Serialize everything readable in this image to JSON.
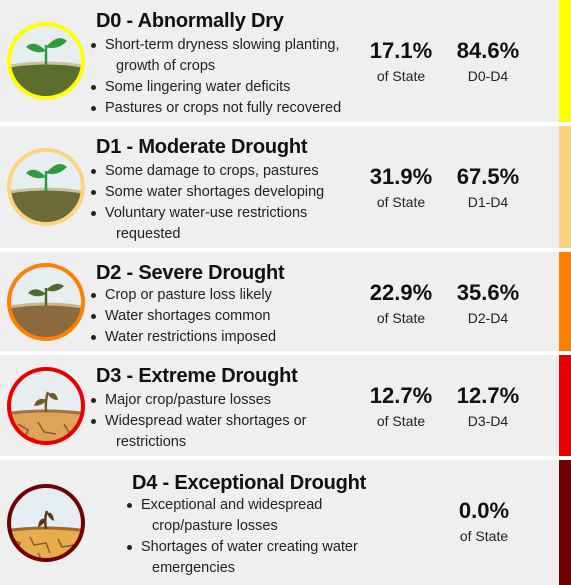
{
  "levels": [
    {
      "id": "d0",
      "title": "D0 - Abnormally Dry",
      "bullets": [
        [
          "Short-term dryness slowing planting,",
          "growth of crops"
        ],
        [
          "Some lingering water deficits"
        ],
        [
          "Pastures or crops not fully recovered"
        ]
      ],
      "state_pct": "17.1%",
      "state_label": "of State",
      "cum_pct": "84.6%",
      "cum_label": "D0-D4",
      "color": "#ffff00",
      "icon": "sprout-healthy-icon"
    },
    {
      "id": "d1",
      "title": "D1 - Moderate Drought",
      "bullets": [
        [
          "Some damage to crops, pastures"
        ],
        [
          "Some water shortages developing"
        ],
        [
          "Voluntary water-use restrictions",
          "requested"
        ]
      ],
      "state_pct": "31.9%",
      "state_label": "of State",
      "cum_pct": "67.5%",
      "cum_label": "D1-D4",
      "color": "#fcd37f",
      "icon": "sprout-healthy-icon"
    },
    {
      "id": "d2",
      "title": "D2 - Severe Drought",
      "bullets": [
        [
          "Crop or pasture loss likely"
        ],
        [
          "Water shortages common"
        ],
        [
          "Water restrictions imposed"
        ]
      ],
      "state_pct": "22.9%",
      "state_label": "of State",
      "cum_pct": "35.6%",
      "cum_label": "D2-D4",
      "color": "#ffaa00",
      "icon": "sprout-wilting-icon"
    },
    {
      "id": "d3",
      "title": "D3 - Extreme Drought",
      "bullets": [
        [
          "Major crop/pasture losses"
        ],
        [
          "Widespread water shortages or",
          "restrictions"
        ]
      ],
      "state_pct": "12.7%",
      "state_label": "of State",
      "cum_pct": "12.7%",
      "cum_label": "D3-D4",
      "color": "#e60000",
      "icon": "sprout-drooping-icon"
    },
    {
      "id": "d4",
      "title": "D4 - Exceptional Drought",
      "bullets": [
        [
          "Exceptional and widespread",
          "crop/pasture losses"
        ],
        [
          "Shortages of water creating water",
          "emergencies"
        ]
      ],
      "state_pct": "0.0%",
      "state_label": "of State",
      "color": "#730000",
      "icon": "sprout-dead-icon"
    }
  ]
}
